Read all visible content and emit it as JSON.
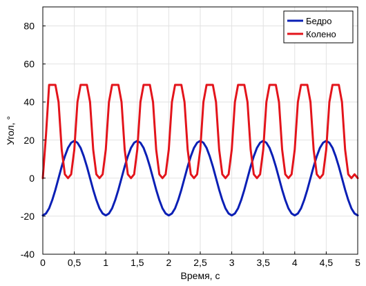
{
  "chart_data": {
    "type": "line",
    "title": "",
    "xlabel": "Время, с",
    "ylabel": "Угол, °",
    "xlim": [
      0,
      5
    ],
    "ylim": [
      -40,
      90
    ],
    "grid": true,
    "legend_position": "top-right",
    "x_ticks": [
      0,
      0.5,
      1,
      1.5,
      2,
      2.5,
      3,
      3.5,
      4,
      4.5,
      5
    ],
    "x_tick_labels": [
      "0",
      "0,5",
      "1",
      "1,5",
      "2",
      "2,5",
      "3",
      "3,5",
      "4",
      "4,5",
      "5"
    ],
    "y_ticks": [
      -40,
      -20,
      0,
      20,
      40,
      60,
      80
    ],
    "y_tick_labels": [
      "-40",
      "-20",
      "0",
      "20",
      "40",
      "60",
      "80"
    ],
    "x": [
      0,
      0.05,
      0.1,
      0.15,
      0.2,
      0.25,
      0.3,
      0.35,
      0.4,
      0.45,
      0.5,
      0.55,
      0.6,
      0.65,
      0.7,
      0.75,
      0.8,
      0.85,
      0.9,
      0.95,
      1,
      1.05,
      1.1,
      1.15,
      1.2,
      1.25,
      1.3,
      1.35,
      1.4,
      1.45,
      1.5,
      1.55,
      1.6,
      1.65,
      1.7,
      1.75,
      1.8,
      1.85,
      1.9,
      1.95,
      2,
      2.05,
      2.1,
      2.15,
      2.2,
      2.25,
      2.3,
      2.35,
      2.4,
      2.45,
      2.5,
      2.55,
      2.6,
      2.65,
      2.7,
      2.75,
      2.8,
      2.85,
      2.9,
      2.95,
      3,
      3.05,
      3.1,
      3.15,
      3.2,
      3.25,
      3.3,
      3.35,
      3.4,
      3.45,
      3.5,
      3.55,
      3.6,
      3.65,
      3.7,
      3.75,
      3.8,
      3.85,
      3.9,
      3.95,
      4,
      4.05,
      4.1,
      4.15,
      4.2,
      4.25,
      4.3,
      4.35,
      4.4,
      4.45,
      4.5,
      4.55,
      4.6,
      4.65,
      4.7,
      4.75,
      4.8,
      4.85,
      4.9,
      4.95,
      5
    ],
    "series": [
      {
        "name": "Бедро",
        "color": "#0a1fb5",
        "values": [
          -19.6,
          -18.6,
          -15.9,
          -11.5,
          -6.1,
          0,
          6.1,
          11.5,
          15.9,
          18.6,
          19.6,
          18.6,
          15.9,
          11.5,
          6.1,
          0,
          -6.1,
          -11.5,
          -15.9,
          -18.6,
          -19.6,
          -18.6,
          -15.9,
          -11.5,
          -6.1,
          0,
          6.1,
          11.5,
          15.9,
          18.6,
          19.6,
          18.6,
          15.9,
          11.5,
          6.1,
          0,
          -6.1,
          -11.5,
          -15.9,
          -18.6,
          -19.6,
          -18.6,
          -15.9,
          -11.5,
          -6.1,
          0,
          6.1,
          11.5,
          15.9,
          18.6,
          19.6,
          18.6,
          15.9,
          11.5,
          6.1,
          0,
          -6.1,
          -11.5,
          -15.9,
          -18.6,
          -19.6,
          -18.6,
          -15.9,
          -11.5,
          -6.1,
          0,
          6.1,
          11.5,
          15.9,
          18.6,
          19.6,
          18.6,
          15.9,
          11.5,
          6.1,
          0,
          -6.1,
          -11.5,
          -15.9,
          -18.6,
          -19.6,
          -18.6,
          -15.9,
          -11.5,
          -6.1,
          0,
          6.1,
          11.5,
          15.9,
          18.6,
          19.6,
          18.6,
          15.9,
          11.5,
          6.1,
          0,
          -6.1,
          -11.5,
          -15.9,
          -18.6,
          -19.6
        ]
      },
      {
        "name": "Колено",
        "color": "#e3141b",
        "values": [
          0.0,
          22.5,
          49.0,
          49.0,
          49.0,
          40.0,
          15.0,
          2.0,
          0.0,
          2.0,
          15.0,
          40.0,
          49.0,
          49.0,
          49.0,
          40.0,
          15.0,
          2.0,
          0.0,
          2.0,
          15.0,
          40.0,
          49.0,
          49.0,
          49.0,
          40.0,
          15.0,
          2.0,
          0.0,
          2.0,
          15.0,
          40.0,
          49.0,
          49.0,
          49.0,
          40.0,
          15.0,
          2.0,
          0.0,
          2.0,
          15.0,
          40.0,
          49.0,
          49.0,
          49.0,
          40.0,
          15.0,
          2.0,
          0.0,
          2.0,
          15.0,
          40.0,
          49.0,
          49.0,
          49.0,
          40.0,
          15.0,
          2.0,
          0.0,
          2.0,
          15.0,
          40.0,
          49.0,
          49.0,
          49.0,
          40.0,
          15.0,
          2.0,
          0.0,
          2.0,
          15.0,
          40.0,
          49.0,
          49.0,
          49.0,
          40.0,
          15.0,
          2.0,
          0.0,
          2.0,
          15.0,
          40.0,
          49.0,
          49.0,
          49.0,
          40.0,
          15.0,
          2.0,
          0.0,
          2.0,
          15.0,
          40.0,
          49.0,
          49.0,
          49.0,
          40.0,
          15.0,
          2.0,
          0.0,
          2.0,
          0.0
        ]
      }
    ]
  }
}
